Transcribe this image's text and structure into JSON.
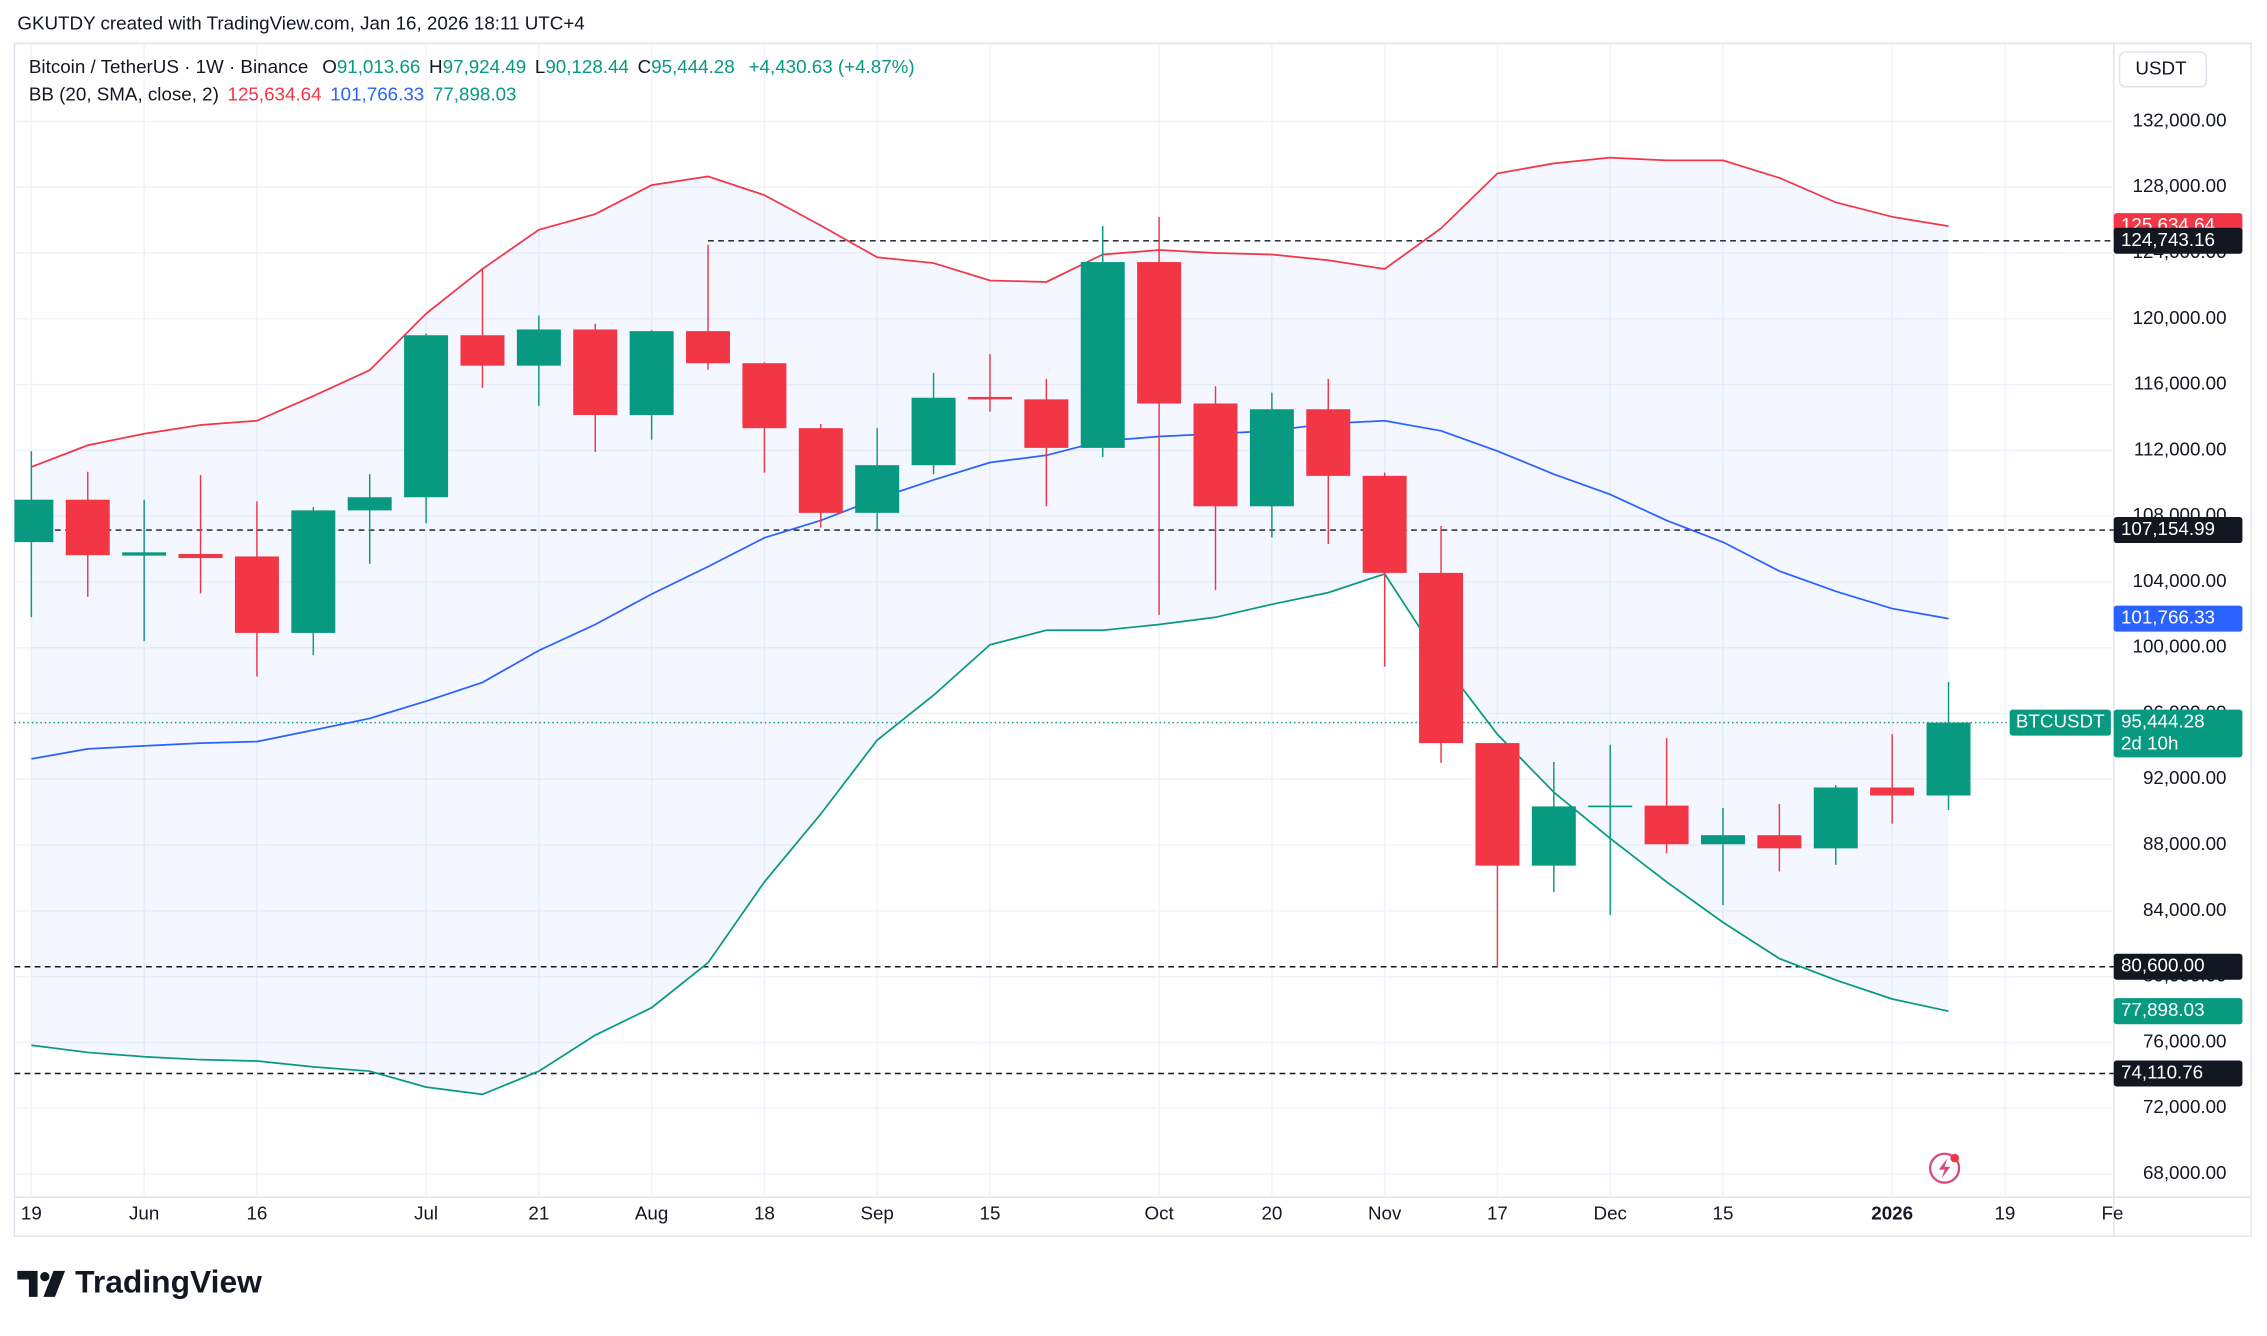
{
  "header": {
    "caption": "GKUTDY created with TradingView.com, Jan 16, 2026 18:11 UTC+4"
  },
  "chart_data": {
    "type": "candlestick",
    "symbol": "Bitcoin / TetherUS · 1W · Binance",
    "legend_ohlc": [
      {
        "key": "O",
        "value": "91,013.66"
      },
      {
        "key": "H",
        "value": "97,924.49"
      },
      {
        "key": "L",
        "value": "90,128.44"
      },
      {
        "key": "C",
        "value": "95,444.28"
      }
    ],
    "change": "+4,430.63 (+4.87%)",
    "indicator": "BB (20, SMA, close, 2)",
    "currency": "USDT",
    "ticker": "BTCUSDT",
    "countdown": "2d 10h",
    "brand": "TradingView",
    "up_color": "#089981",
    "down_color": "#f23645",
    "grid": true,
    "xlim": [
      -0.3,
      36.93
    ],
    "xticks": [
      {
        "value": 0,
        "label": "19"
      },
      {
        "value": 2,
        "label": "Jun"
      },
      {
        "value": 4,
        "label": "16"
      },
      {
        "value": 7,
        "label": "Jul"
      },
      {
        "value": 9,
        "label": "21"
      },
      {
        "value": 11,
        "label": "Aug"
      },
      {
        "value": 13,
        "label": "18"
      },
      {
        "value": 15,
        "label": "Sep"
      },
      {
        "value": 17,
        "label": "15"
      },
      {
        "value": 20,
        "label": "Oct"
      },
      {
        "value": 22,
        "label": "20"
      },
      {
        "value": 24,
        "label": "Nov"
      },
      {
        "value": 26,
        "label": "17"
      },
      {
        "value": 28,
        "label": "Dec"
      },
      {
        "value": 30,
        "label": "15"
      },
      {
        "value": 33,
        "label": "2026",
        "bold": true
      },
      {
        "value": 35,
        "label": "19"
      },
      {
        "value": 37,
        "label": "Feb"
      }
    ],
    "ylim": [
      66593,
      136747
    ],
    "yticks": [
      {
        "value": 68000,
        "label": "68,000.00"
      },
      {
        "value": 72000,
        "label": "72,000.00"
      },
      {
        "value": 76000,
        "label": "76,000.00"
      },
      {
        "value": 80000,
        "label": "80,000.00"
      },
      {
        "value": 84000,
        "label": "84,000.00"
      },
      {
        "value": 88000,
        "label": "88,000.00"
      },
      {
        "value": 92000,
        "label": "92,000.00"
      },
      {
        "value": 96000,
        "label": "96,000.00"
      },
      {
        "value": 100000,
        "label": "100,000.00"
      },
      {
        "value": 104000,
        "label": "104,000.00"
      },
      {
        "value": 108000,
        "label": "108,000.00"
      },
      {
        "value": 112000,
        "label": "112,000.00"
      },
      {
        "value": 116000,
        "label": "116,000.00"
      },
      {
        "value": 120000,
        "label": "120,000.00"
      },
      {
        "value": 124000,
        "label": "124,000.00"
      },
      {
        "value": 128000,
        "label": "128,000.00"
      },
      {
        "value": 132000,
        "label": "132,000.00"
      }
    ],
    "open": [
      106420,
      109000,
      105600,
      105700,
      105550,
      100900,
      108350,
      109150,
      119000,
      117150,
      119350,
      114150,
      119250,
      117300,
      113350,
      108200,
      111100,
      115250,
      115100,
      112150,
      123450,
      114850,
      108600,
      114500,
      110450,
      104550,
      94200,
      86750,
      90300,
      90400,
      88050,
      88600,
      87800,
      91500,
      91013.66
    ],
    "high": [
      111950,
      110700,
      109000,
      110500,
      108900,
      108550,
      110550,
      119100,
      123100,
      120200,
      119700,
      119300,
      124500,
      117350,
      113600,
      113350,
      116700,
      117850,
      116350,
      125650,
      126200,
      115900,
      115500,
      116350,
      110650,
      107400,
      94200,
      93050,
      94100,
      94500,
      90250,
      90500,
      91650,
      94750,
      97924.49
    ],
    "low": [
      101850,
      103100,
      100400,
      103300,
      98250,
      99550,
      105100,
      107560,
      115800,
      114700,
      111900,
      112650,
      116900,
      110650,
      107300,
      107150,
      110550,
      114350,
      108600,
      111600,
      102000,
      103500,
      106700,
      106300,
      98850,
      93000,
      80600,
      85150,
      83750,
      87500,
      84350,
      86400,
      86800,
      89300,
      90128.44
    ],
    "close": [
      109000,
      105630,
      105800,
      105450,
      100900,
      108350,
      109150,
      119000,
      117150,
      119350,
      114150,
      119250,
      117300,
      113350,
      108200,
      111100,
      115200,
      115100,
      112150,
      123450,
      114850,
      108600,
      114500,
      110450,
      104550,
      94200,
      86750,
      90350,
      90400,
      88050,
      88600,
      87800,
      91500,
      91013.66,
      95444.28
    ],
    "bands": [
      {
        "color": "#f23645",
        "value_label": "125,634.64",
        "values": [
          110990,
          112310,
          113010,
          113540,
          113800,
          115300,
          116880,
          120310,
          123030,
          125410,
          126370,
          128130,
          128660,
          127520,
          125670,
          123740,
          123390,
          122330,
          122240,
          123910,
          124180,
          124000,
          123910,
          123560,
          123030,
          125500,
          128840,
          129450,
          129800,
          129630,
          129630,
          128570,
          127080,
          126200,
          125634.64
        ]
      },
      {
        "color": "#2962ff",
        "value_label": "101,766.33",
        "values": [
          93240,
          93850,
          94030,
          94200,
          94290,
          94990,
          95700,
          96750,
          97890,
          99830,
          101410,
          103260,
          104930,
          106680,
          107740,
          109060,
          110200,
          111260,
          111700,
          112580,
          112840,
          113010,
          113190,
          113630,
          113800,
          113190,
          111960,
          110550,
          109320,
          107740,
          106420,
          104660,
          103430,
          102380,
          101766.33
        ]
      },
      {
        "color": "#089981",
        "value_label": "77,898.03",
        "values": [
          75830,
          75390,
          75130,
          74950,
          74870,
          74510,
          74250,
          73280,
          72840,
          74250,
          76440,
          78110,
          80840,
          85760,
          89890,
          94380,
          97110,
          100180,
          101060,
          101060,
          101410,
          101850,
          102640,
          103350,
          104490,
          99220,
          94730,
          91210,
          88400,
          85760,
          83300,
          81100,
          79790,
          78640,
          77898.03
        ]
      }
    ],
    "band_fill": "#2962ff",
    "price_lines": [
      {
        "value": 124743.16,
        "label": "124,743.16",
        "x0": 12
      },
      {
        "value": 107154.99,
        "label": "107,154.99"
      },
      {
        "value": 80600,
        "label": "80,600.00"
      },
      {
        "value": 74110.76,
        "label": "74,110.76"
      }
    ],
    "last_price": {
      "value": 95444.28,
      "label": "95,444.28"
    }
  }
}
